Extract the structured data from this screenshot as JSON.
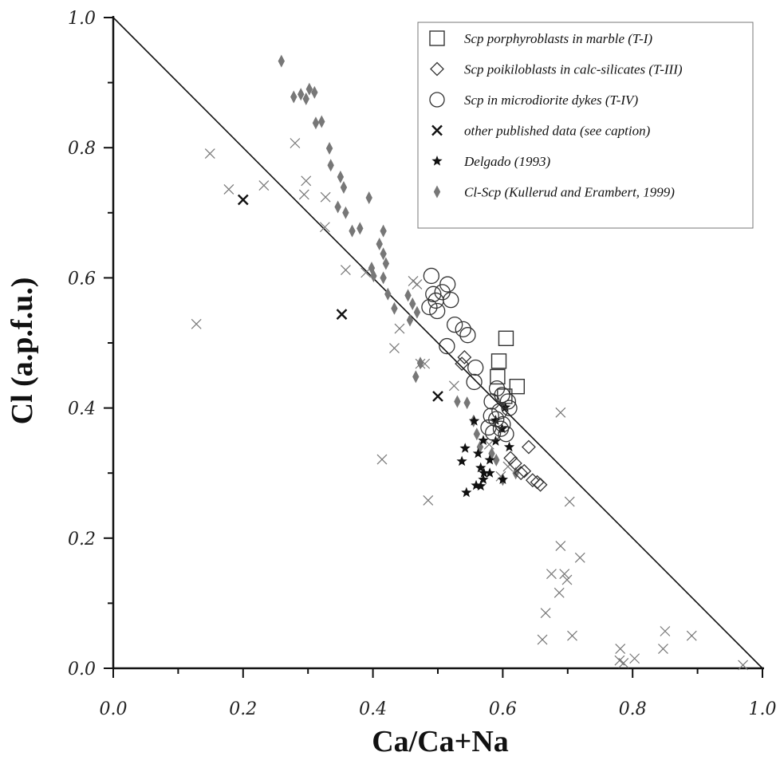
{
  "chart_data": {
    "type": "scatter",
    "xlabel": "Ca/Ca+Na",
    "ylabel": "Cl (a.p.f.u.)",
    "xlim": [
      0.0,
      1.0
    ],
    "ylim": [
      0.0,
      1.0
    ],
    "x_ticks": [
      "0.0",
      "0.2",
      "0.4",
      "0.6",
      "0.8",
      "1.0"
    ],
    "y_ticks": [
      "0.0",
      "0.2",
      "0.4",
      "0.6",
      "0.8",
      "1.0"
    ],
    "grid": false,
    "legend_position": "top-right",
    "reference_line": {
      "from": [
        0.0,
        1.0
      ],
      "to": [
        1.0,
        0.0
      ]
    },
    "colors": {
      "gray_marker": "#777777",
      "black_marker": "#111111",
      "axis": "#111111"
    },
    "series": [
      {
        "name": "Scp porphyroblasts in marble (T-I)",
        "marker": "square",
        "points": [
          [
            0.605,
            0.507
          ],
          [
            0.594,
            0.472
          ],
          [
            0.592,
            0.448
          ],
          [
            0.622,
            0.433
          ],
          [
            0.603,
            0.418
          ]
        ]
      },
      {
        "name": "Scp poikiloblasts in calc-silicates (T-III)",
        "marker": "diamond",
        "points": [
          [
            0.541,
            0.478
          ],
          [
            0.537,
            0.468
          ],
          [
            0.64,
            0.34
          ],
          [
            0.612,
            0.323
          ],
          [
            0.619,
            0.315
          ],
          [
            0.633,
            0.303
          ],
          [
            0.646,
            0.289
          ],
          [
            0.653,
            0.286
          ],
          [
            0.658,
            0.282
          ],
          [
            0.628,
            0.3
          ]
        ]
      },
      {
        "name": "Scp in microdiorite dykes (T-IV)",
        "marker": "circle",
        "points": [
          [
            0.49,
            0.603
          ],
          [
            0.515,
            0.59
          ],
          [
            0.507,
            0.578
          ],
          [
            0.52,
            0.566
          ],
          [
            0.493,
            0.575
          ],
          [
            0.497,
            0.565
          ],
          [
            0.487,
            0.555
          ],
          [
            0.499,
            0.549
          ],
          [
            0.526,
            0.528
          ],
          [
            0.539,
            0.521
          ],
          [
            0.546,
            0.512
          ],
          [
            0.514,
            0.495
          ],
          [
            0.558,
            0.462
          ],
          [
            0.591,
            0.43
          ],
          [
            0.599,
            0.42
          ],
          [
            0.608,
            0.41
          ],
          [
            0.583,
            0.41
          ],
          [
            0.61,
            0.4
          ],
          [
            0.595,
            0.395
          ],
          [
            0.582,
            0.388
          ],
          [
            0.59,
            0.383
          ],
          [
            0.6,
            0.375
          ],
          [
            0.597,
            0.368
          ],
          [
            0.578,
            0.37
          ],
          [
            0.605,
            0.36
          ],
          [
            0.585,
            0.362
          ],
          [
            0.556,
            0.44
          ]
        ]
      },
      {
        "name": "other published data (see caption)",
        "marker": "x",
        "points": [
          [
            0.149,
            0.791
          ],
          [
            0.178,
            0.736
          ],
          [
            0.232,
            0.742
          ],
          [
            0.28,
            0.807
          ],
          [
            0.297,
            0.749
          ],
          [
            0.294,
            0.728
          ],
          [
            0.327,
            0.724
          ],
          [
            0.326,
            0.678
          ],
          [
            0.358,
            0.612
          ],
          [
            0.128,
            0.529
          ],
          [
            0.389,
            0.608
          ],
          [
            0.433,
            0.492
          ],
          [
            0.441,
            0.522
          ],
          [
            0.462,
            0.595
          ],
          [
            0.468,
            0.59
          ],
          [
            0.48,
            0.468
          ],
          [
            0.473,
            0.468
          ],
          [
            0.414,
            0.321
          ],
          [
            0.485,
            0.258
          ],
          [
            0.525,
            0.434
          ],
          [
            0.579,
            0.344
          ],
          [
            0.597,
            0.295
          ],
          [
            0.608,
            0.31
          ],
          [
            0.689,
            0.393
          ],
          [
            0.703,
            0.256
          ],
          [
            0.689,
            0.188
          ],
          [
            0.719,
            0.17
          ],
          [
            0.675,
            0.145
          ],
          [
            0.695,
            0.145
          ],
          [
            0.687,
            0.116
          ],
          [
            0.699,
            0.136
          ],
          [
            0.666,
            0.085
          ],
          [
            0.707,
            0.05
          ],
          [
            0.661,
            0.044
          ],
          [
            0.781,
            0.03
          ],
          [
            0.78,
            0.012
          ],
          [
            0.786,
            0.008
          ],
          [
            0.803,
            0.015
          ],
          [
            0.85,
            0.057
          ],
          [
            0.847,
            0.03
          ],
          [
            0.891,
            0.05
          ],
          [
            0.97,
            0.005
          ]
        ]
      },
      {
        "name": "other published data (see caption)",
        "marker": "x-bold",
        "points": [
          [
            0.2,
            0.72
          ],
          [
            0.352,
            0.544
          ],
          [
            0.5,
            0.418
          ]
        ]
      },
      {
        "name": "Delgado (1993)",
        "marker": "star",
        "points": [
          [
            0.604,
            0.401
          ],
          [
            0.589,
            0.381
          ],
          [
            0.599,
            0.368
          ],
          [
            0.556,
            0.38
          ],
          [
            0.57,
            0.35
          ],
          [
            0.589,
            0.349
          ],
          [
            0.542,
            0.338
          ],
          [
            0.562,
            0.33
          ],
          [
            0.537,
            0.318
          ],
          [
            0.566,
            0.308
          ],
          [
            0.58,
            0.32
          ],
          [
            0.571,
            0.3
          ],
          [
            0.57,
            0.29
          ],
          [
            0.58,
            0.3
          ],
          [
            0.559,
            0.281
          ],
          [
            0.566,
            0.28
          ],
          [
            0.544,
            0.27
          ],
          [
            0.6,
            0.29
          ],
          [
            0.61,
            0.34
          ]
        ]
      },
      {
        "name": "Cl-Scp (Kullerud and Erambert, 1999)",
        "marker": "gray-diamond",
        "points": [
          [
            0.259,
            0.933
          ],
          [
            0.289,
            0.882
          ],
          [
            0.302,
            0.89
          ],
          [
            0.31,
            0.885
          ],
          [
            0.278,
            0.878
          ],
          [
            0.297,
            0.875
          ],
          [
            0.321,
            0.84
          ],
          [
            0.312,
            0.838
          ],
          [
            0.333,
            0.799
          ],
          [
            0.335,
            0.773
          ],
          [
            0.35,
            0.755
          ],
          [
            0.355,
            0.739
          ],
          [
            0.346,
            0.709
          ],
          [
            0.358,
            0.7
          ],
          [
            0.38,
            0.676
          ],
          [
            0.368,
            0.672
          ],
          [
            0.394,
            0.723
          ],
          [
            0.416,
            0.672
          ],
          [
            0.41,
            0.652
          ],
          [
            0.416,
            0.637
          ],
          [
            0.42,
            0.622
          ],
          [
            0.398,
            0.615
          ],
          [
            0.416,
            0.6
          ],
          [
            0.401,
            0.603
          ],
          [
            0.433,
            0.553
          ],
          [
            0.423,
            0.575
          ],
          [
            0.454,
            0.573
          ],
          [
            0.461,
            0.56
          ],
          [
            0.457,
            0.535
          ],
          [
            0.468,
            0.547
          ],
          [
            0.473,
            0.469
          ],
          [
            0.466,
            0.448
          ],
          [
            0.53,
            0.41
          ],
          [
            0.545,
            0.408
          ],
          [
            0.555,
            0.38
          ],
          [
            0.56,
            0.36
          ],
          [
            0.565,
            0.34
          ],
          [
            0.583,
            0.33
          ],
          [
            0.59,
            0.32
          ],
          [
            0.6,
            0.29
          ],
          [
            0.62,
            0.3
          ]
        ]
      }
    ],
    "legend": [
      {
        "marker": "square",
        "label": "Scp porphyroblasts in marble (T-I)"
      },
      {
        "marker": "diamond",
        "label": "Scp poikiloblasts in calc-silicates (T-III)"
      },
      {
        "marker": "circle",
        "label": "Scp in microdiorite dykes (T-IV)"
      },
      {
        "marker": "x-bold",
        "label": "other published data (see caption)"
      },
      {
        "marker": "star",
        "label": "Delgado (1993)"
      },
      {
        "marker": "gray-diamond",
        "label": "Cl-Scp (Kullerud and Erambert, 1999)"
      }
    ]
  }
}
